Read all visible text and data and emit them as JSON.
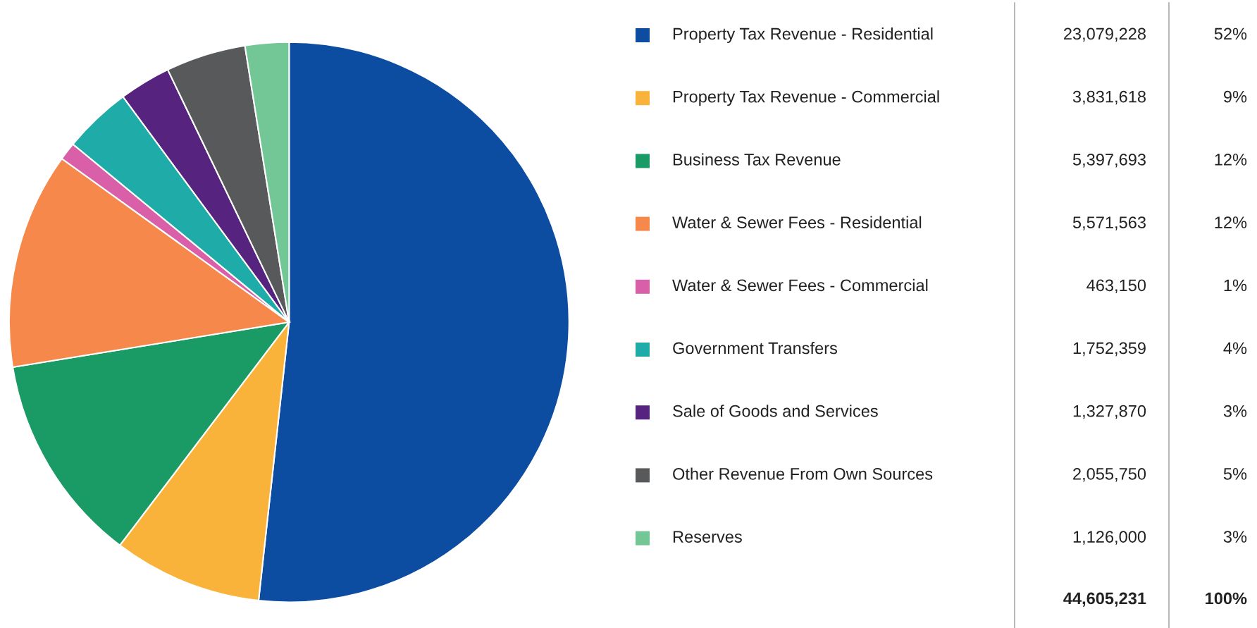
{
  "chart_data": {
    "type": "pie",
    "categories": [
      "Property Tax Revenue - Residential",
      "Property Tax Revenue - Commercial",
      "Business Tax Revenue",
      "Water & Sewer Fees - Residential",
      "Water & Sewer Fees - Commercial",
      "Government Transfers",
      "Sale of Goods and Services",
      "Other Revenue From Own Sources",
      "Reserves"
    ],
    "values": [
      23079228,
      3831618,
      5397693,
      5571563,
      463150,
      1752359,
      1327870,
      2055750,
      1126000
    ],
    "value_labels": [
      "23,079,228",
      "3,831,618",
      "5,397,693",
      "5,571,563",
      "463,150",
      "1,752,359",
      "1,327,870",
      "2,055,750",
      "1,126,000"
    ],
    "colors": [
      "#0c4da2",
      "#f9b33b",
      "#1a9a64",
      "#f5884a",
      "#d95fa8",
      "#1faba8",
      "#56237e",
      "#58595b",
      "#73c796"
    ],
    "annotations": [
      "52%",
      "9%",
      "12%",
      "12%",
      "1%",
      "4%",
      "3%",
      "5%",
      "3%",
      "100%"
    ],
    "totals": [
      "44,605,231"
    ],
    "legend": "right"
  }
}
